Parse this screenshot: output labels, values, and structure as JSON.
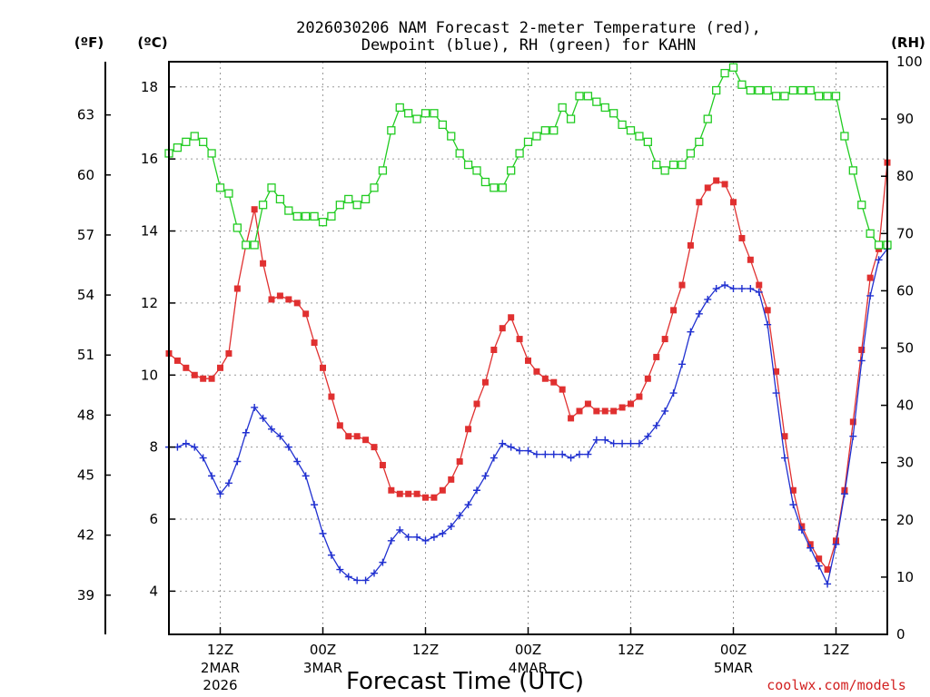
{
  "chart_data": {
    "type": "line",
    "title": "2026030206 NAM Forecast 2-meter Temperature (red),",
    "subtitle": "Dewpoint (blue), RH (green) for KAHN",
    "xlabel": "Forecast Time (UTC)",
    "unit_labels": {
      "fahrenheit": "(ºF)",
      "celsius": "(ºC)",
      "rh": "(RH)"
    },
    "credit": "coolwx.com/models",
    "x_range_hours": [
      0,
      84
    ],
    "y_left_c_range": [
      2.8,
      18.7
    ],
    "y_right_rh_range": [
      0,
      100
    ],
    "celsius_ticks": [
      "4",
      "6",
      "8",
      "10",
      "12",
      "14",
      "16",
      "18"
    ],
    "fahrenheit_ticks": [
      "39",
      "42",
      "45",
      "48",
      "51",
      "54",
      "57",
      "60",
      "63"
    ],
    "rh_ticks": [
      "0",
      "10",
      "20",
      "30",
      "40",
      "50",
      "60",
      "70",
      "80",
      "90",
      "100"
    ],
    "x_ticks": [
      {
        "hour": 6,
        "label": "12Z",
        "date": "2MAR",
        "year": "2026"
      },
      {
        "hour": 18,
        "label": "00Z",
        "date": "3MAR",
        "year": ""
      },
      {
        "hour": 30,
        "label": "12Z",
        "date": "",
        "year": ""
      },
      {
        "hour": 42,
        "label": "00Z",
        "date": "4MAR",
        "year": ""
      },
      {
        "hour": 54,
        "label": "12Z",
        "date": "",
        "year": ""
      },
      {
        "hour": 66,
        "label": "00Z",
        "date": "5MAR",
        "year": ""
      },
      {
        "hour": 78,
        "label": "12Z",
        "date": "",
        "year": ""
      }
    ],
    "x_hours": [
      0,
      1,
      2,
      3,
      4,
      5,
      6,
      7,
      8,
      9,
      10,
      11,
      12,
      13,
      14,
      15,
      16,
      17,
      18,
      19,
      20,
      21,
      22,
      23,
      24,
      25,
      26,
      27,
      28,
      29,
      30,
      31,
      32,
      33,
      34,
      35,
      36,
      37,
      38,
      39,
      40,
      41,
      42,
      43,
      44,
      45,
      46,
      47,
      48,
      49,
      50,
      51,
      52,
      53,
      54,
      55,
      56,
      57,
      58,
      59,
      60,
      61,
      62,
      63,
      64,
      65,
      66,
      67,
      68,
      69,
      70,
      71,
      72,
      73,
      74,
      75,
      76,
      77,
      78,
      79,
      80,
      81,
      82,
      83,
      84
    ],
    "series": [
      {
        "key": "temperature",
        "units": "C",
        "color": "#e03030",
        "marker": "filled-square",
        "values": [
          10.6,
          10.4,
          10.2,
          10.0,
          9.9,
          9.9,
          10.2,
          10.6,
          12.4,
          13.6,
          14.6,
          13.1,
          12.1,
          12.2,
          12.1,
          12.0,
          11.7,
          10.9,
          10.2,
          9.4,
          8.6,
          8.3,
          8.3,
          8.2,
          8.0,
          7.5,
          6.8,
          6.7,
          6.7,
          6.7,
          6.6,
          6.6,
          6.8,
          7.1,
          7.6,
          8.5,
          9.2,
          9.8,
          10.7,
          11.3,
          11.6,
          11.0,
          10.4,
          10.1,
          9.9,
          9.8,
          9.6,
          8.8,
          9.0,
          9.2,
          9.0,
          9.0,
          9.0,
          9.1,
          9.2,
          9.4,
          9.9,
          10.5,
          11.0,
          11.8,
          12.5,
          13.6,
          14.8,
          15.2,
          15.4,
          15.3,
          14.8,
          13.8,
          13.2,
          12.5,
          11.8,
          10.1,
          8.3,
          6.8,
          5.8,
          5.3,
          4.9,
          4.6,
          5.4,
          6.8,
          8.7,
          10.7,
          12.7,
          13.5,
          15.9
        ]
      },
      {
        "key": "dewpoint",
        "units": "C",
        "color": "#2030d0",
        "marker": "plus",
        "values": [
          8.0,
          8.0,
          8.1,
          8.0,
          7.7,
          7.2,
          6.7,
          7.0,
          7.6,
          8.4,
          9.1,
          8.8,
          8.5,
          8.3,
          8.0,
          7.6,
          7.2,
          6.4,
          5.6,
          5.0,
          4.6,
          4.4,
          4.3,
          4.3,
          4.5,
          4.8,
          5.4,
          5.7,
          5.5,
          5.5,
          5.4,
          5.5,
          5.6,
          5.8,
          6.1,
          6.4,
          6.8,
          7.2,
          7.7,
          8.1,
          8.0,
          7.9,
          7.9,
          7.8,
          7.8,
          7.8,
          7.8,
          7.7,
          7.8,
          7.8,
          8.2,
          8.2,
          8.1,
          8.1,
          8.1,
          8.1,
          8.3,
          8.6,
          9.0,
          9.5,
          10.3,
          11.2,
          11.7,
          12.1,
          12.4,
          12.5,
          12.4,
          12.4,
          12.4,
          12.3,
          11.4,
          9.5,
          7.7,
          6.4,
          5.7,
          5.2,
          4.7,
          4.2,
          5.3,
          6.7,
          8.3,
          10.4,
          12.2,
          13.2,
          13.5
        ]
      },
      {
        "key": "rh",
        "units": "%",
        "color": "#22cc22",
        "marker": "open-square",
        "values": [
          84,
          85,
          86,
          87,
          86,
          84,
          78,
          77,
          71,
          68,
          68,
          75,
          78,
          76,
          74,
          73,
          73,
          73,
          72,
          73,
          75,
          76,
          75,
          76,
          78,
          81,
          88,
          92,
          91,
          90,
          91,
          91,
          89,
          87,
          84,
          82,
          81,
          79,
          78,
          78,
          81,
          84,
          86,
          87,
          88,
          88,
          92,
          90,
          94,
          94,
          93,
          92,
          91,
          89,
          88,
          87,
          86,
          82,
          81,
          82,
          82,
          84,
          86,
          90,
          95,
          98,
          99,
          96,
          95,
          95,
          95,
          94,
          94,
          95,
          95,
          95,
          94,
          94,
          94,
          87,
          81,
          75,
          70,
          68,
          68
        ]
      }
    ],
    "grid": true,
    "legend": "none"
  }
}
